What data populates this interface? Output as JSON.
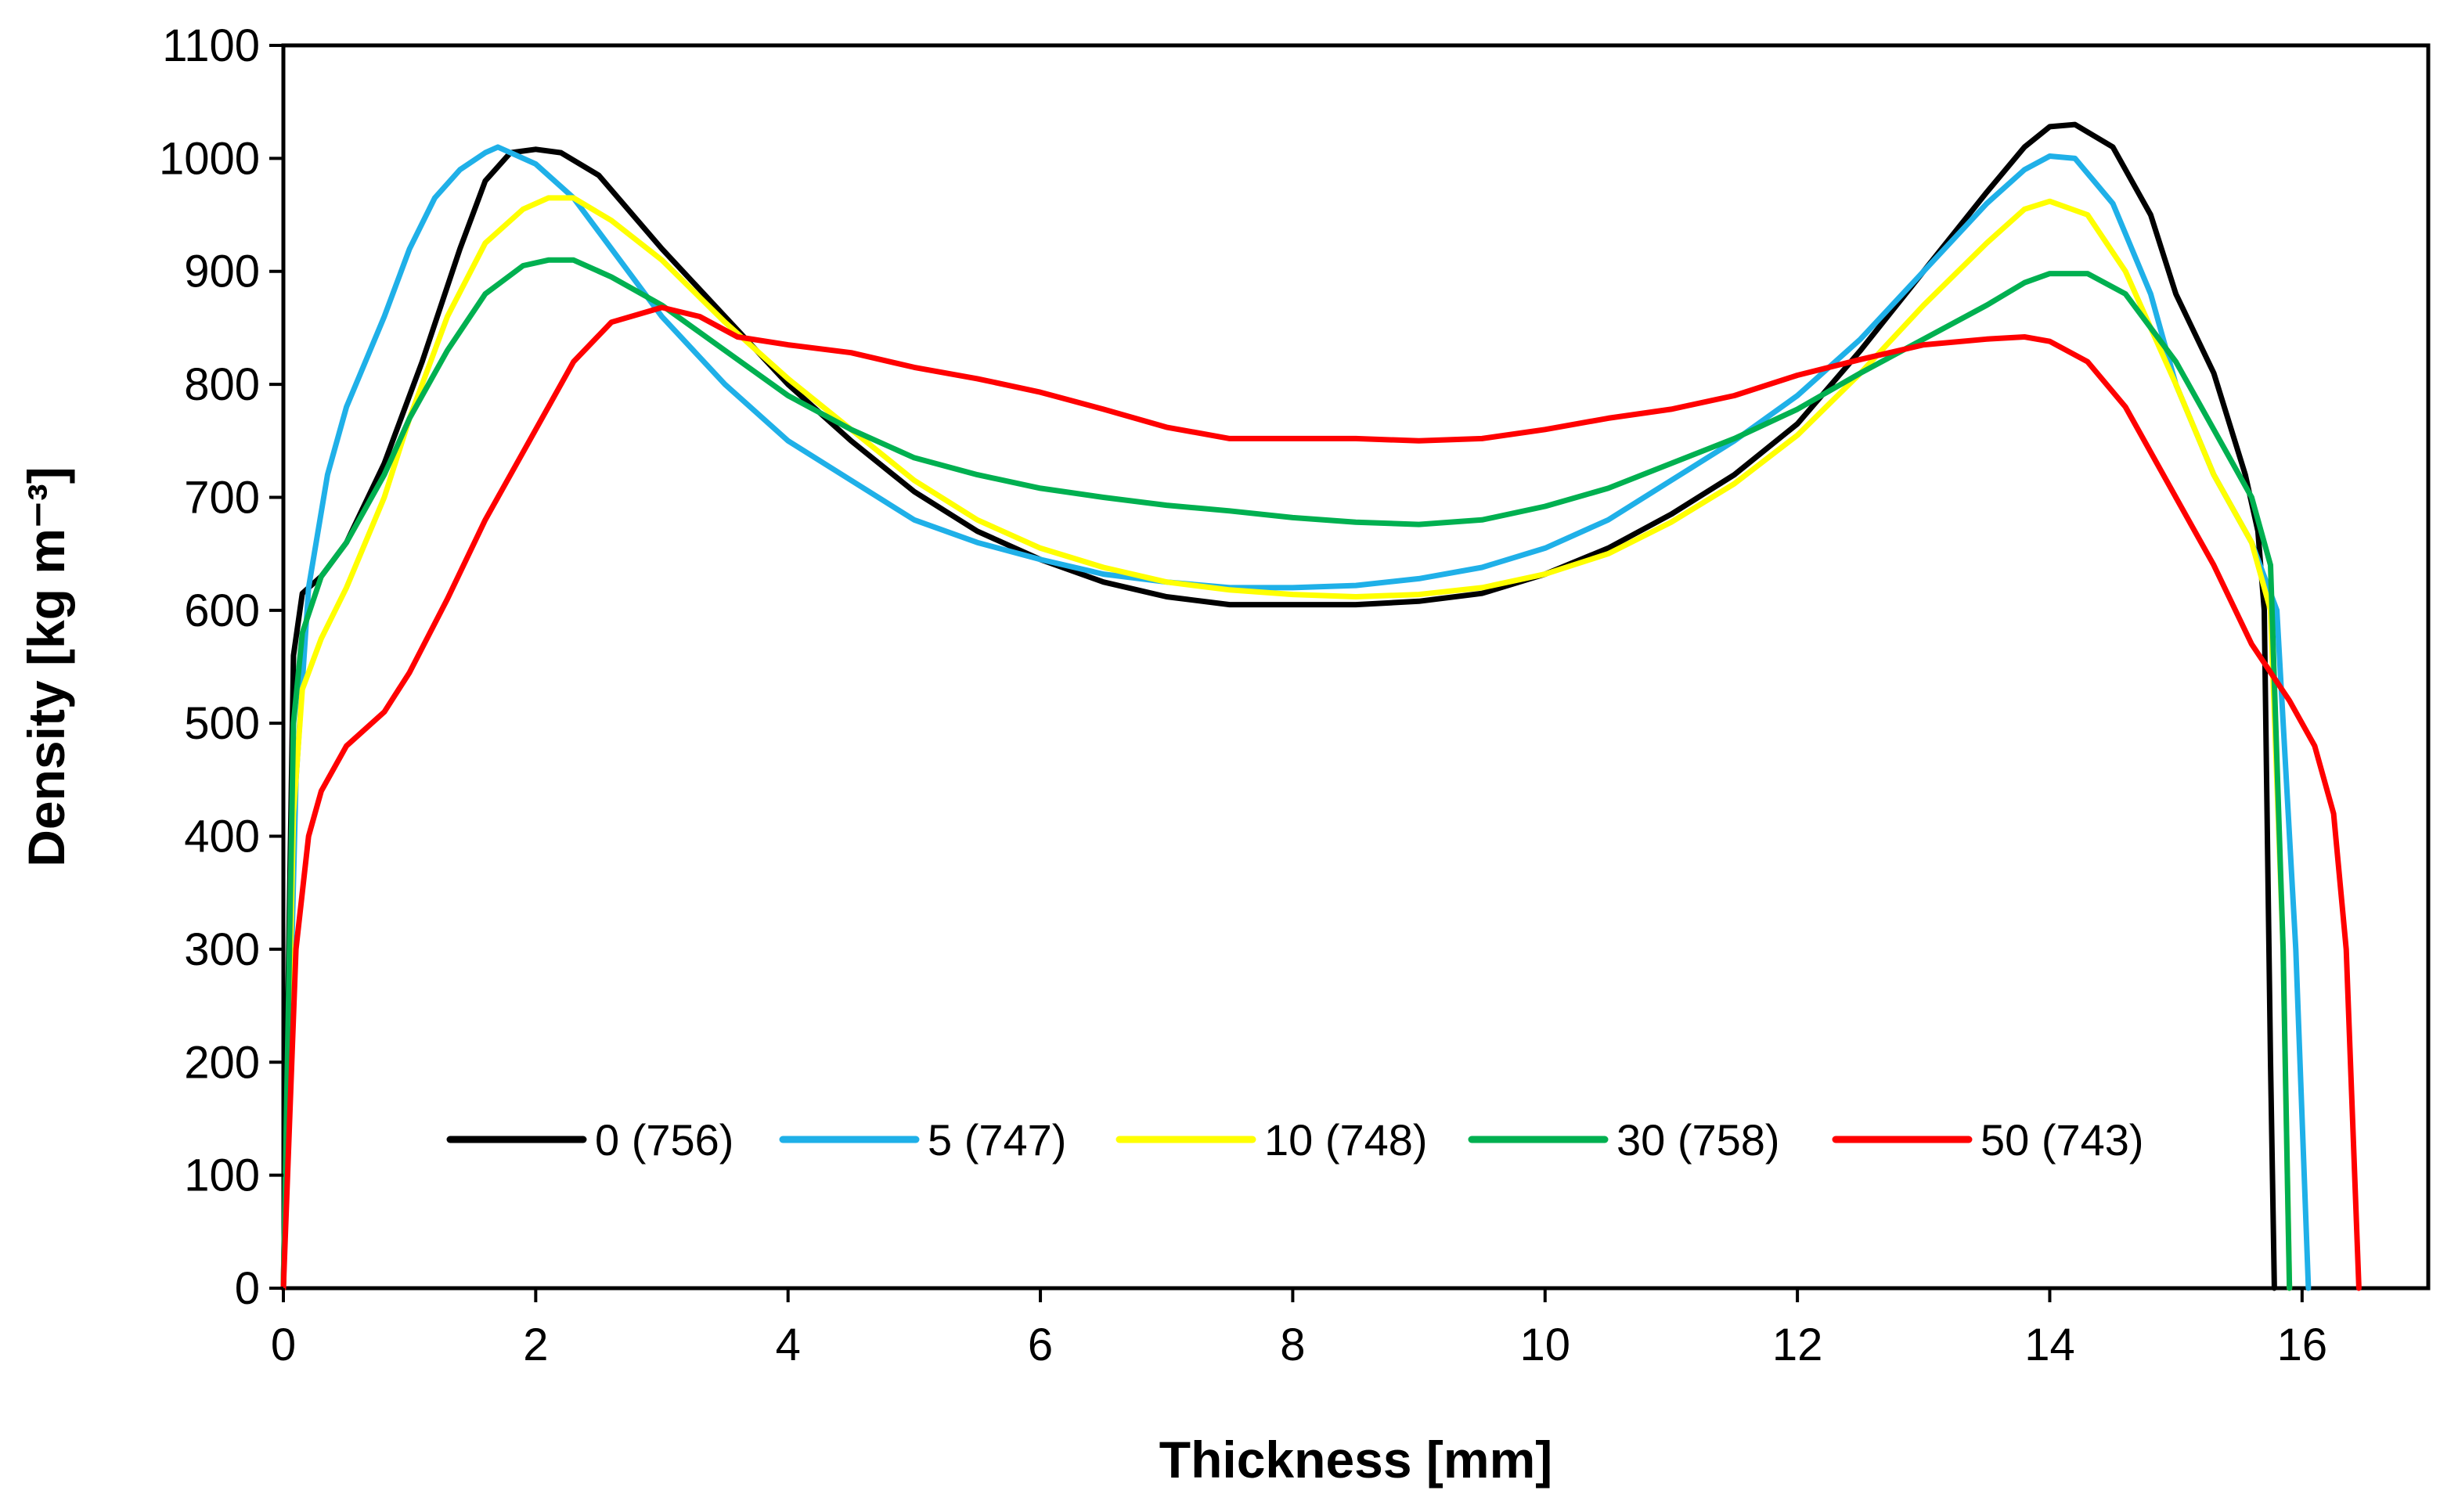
{
  "chart_data": {
    "type": "line",
    "title": "",
    "xlabel": "Thickness [mm]",
    "ylabel": "Density [kg m⁻³]",
    "xlim": [
      0,
      17
    ],
    "ylim": [
      0,
      1100
    ],
    "xticks": [
      0,
      2,
      4,
      6,
      8,
      10,
      12,
      14,
      16
    ],
    "yticks": [
      0,
      100,
      200,
      300,
      400,
      500,
      600,
      700,
      800,
      900,
      1000,
      1100
    ],
    "grid": false,
    "legend_position": "bottom-center",
    "series": [
      {
        "name": "0 (756)",
        "color": "#000000",
        "x": [
          0,
          0.08,
          0.15,
          0.3,
          0.5,
          0.8,
          1.1,
          1.4,
          1.6,
          1.8,
          2.0,
          2.2,
          2.5,
          3.0,
          3.5,
          4.0,
          4.5,
          5.0,
          5.5,
          6.0,
          6.5,
          7.0,
          7.5,
          8.0,
          8.5,
          9.0,
          9.5,
          10.0,
          10.5,
          11.0,
          11.5,
          12.0,
          12.5,
          13.0,
          13.5,
          13.8,
          14.0,
          14.2,
          14.5,
          14.8,
          15.0,
          15.3,
          15.55,
          15.65,
          15.7,
          15.75,
          15.78
        ],
        "y": [
          0,
          560,
          615,
          630,
          660,
          730,
          820,
          920,
          980,
          1005,
          1008,
          1005,
          985,
          920,
          860,
          800,
          750,
          705,
          670,
          645,
          625,
          612,
          605,
          605,
          605,
          608,
          615,
          632,
          655,
          685,
          720,
          765,
          830,
          900,
          970,
          1010,
          1028,
          1030,
          1010,
          950,
          880,
          810,
          720,
          670,
          600,
          200,
          0
        ]
      },
      {
        "name": "5 (747)",
        "color": "#1FB0E8",
        "x": [
          0,
          0.1,
          0.2,
          0.35,
          0.5,
          0.8,
          1.0,
          1.2,
          1.4,
          1.6,
          1.7,
          1.8,
          2.0,
          2.3,
          2.6,
          3.0,
          3.5,
          4.0,
          4.5,
          5.0,
          5.5,
          6.0,
          6.5,
          7.0,
          7.5,
          8.0,
          8.5,
          9.0,
          9.5,
          10.0,
          10.5,
          11.0,
          11.5,
          12.0,
          12.5,
          13.0,
          13.5,
          13.8,
          14.0,
          14.2,
          14.5,
          14.8,
          15.0,
          15.3,
          15.6,
          15.8,
          15.95,
          16.05
        ],
        "y": [
          0,
          450,
          620,
          720,
          780,
          860,
          920,
          965,
          990,
          1005,
          1010,
          1005,
          995,
          965,
          920,
          860,
          800,
          750,
          715,
          680,
          660,
          645,
          632,
          625,
          620,
          620,
          622,
          628,
          638,
          655,
          680,
          715,
          750,
          790,
          840,
          900,
          960,
          990,
          1002,
          1000,
          960,
          880,
          800,
          720,
          660,
          600,
          300,
          0
        ]
      },
      {
        "name": "10 (748)",
        "color": "#FFFF00",
        "x": [
          0,
          0.08,
          0.15,
          0.3,
          0.5,
          0.8,
          1.0,
          1.3,
          1.6,
          1.9,
          2.1,
          2.3,
          2.6,
          3.0,
          3.5,
          4.0,
          4.5,
          5.0,
          5.5,
          6.0,
          6.5,
          7.0,
          7.5,
          8.0,
          8.5,
          9.0,
          9.5,
          10.0,
          10.5,
          11.0,
          11.5,
          12.0,
          12.5,
          13.0,
          13.5,
          13.8,
          14.0,
          14.3,
          14.6,
          15.0,
          15.3,
          15.6,
          15.75,
          15.85,
          15.9
        ],
        "y": [
          0,
          420,
          530,
          575,
          620,
          700,
          770,
          860,
          925,
          955,
          965,
          965,
          945,
          910,
          855,
          805,
          760,
          715,
          680,
          655,
          638,
          625,
          618,
          614,
          612,
          614,
          620,
          632,
          650,
          678,
          712,
          755,
          810,
          870,
          925,
          955,
          962,
          950,
          900,
          800,
          720,
          660,
          600,
          300,
          0
        ]
      },
      {
        "name": "30 (758)",
        "color": "#00B050",
        "x": [
          0,
          0.08,
          0.15,
          0.3,
          0.5,
          0.8,
          1.0,
          1.3,
          1.6,
          1.9,
          2.1,
          2.3,
          2.6,
          3.0,
          3.5,
          4.0,
          4.5,
          5.0,
          5.5,
          6.0,
          6.5,
          7.0,
          7.5,
          8.0,
          8.5,
          9.0,
          9.5,
          10.0,
          10.5,
          11.0,
          11.5,
          12.0,
          12.5,
          13.0,
          13.5,
          13.8,
          14.0,
          14.3,
          14.6,
          15.0,
          15.3,
          15.6,
          15.75,
          15.85,
          15.9
        ],
        "y": [
          0,
          500,
          580,
          630,
          660,
          720,
          770,
          830,
          880,
          905,
          910,
          910,
          895,
          870,
          830,
          790,
          760,
          735,
          720,
          708,
          700,
          693,
          688,
          682,
          678,
          676,
          680,
          692,
          708,
          730,
          752,
          778,
          810,
          840,
          870,
          890,
          898,
          898,
          880,
          820,
          760,
          700,
          640,
          300,
          0
        ]
      },
      {
        "name": "50 (743)",
        "color": "#FF0000",
        "x": [
          0,
          0.1,
          0.2,
          0.3,
          0.5,
          0.8,
          1.0,
          1.3,
          1.6,
          2.0,
          2.3,
          2.6,
          3.0,
          3.3,
          3.6,
          4.0,
          4.5,
          5.0,
          5.5,
          6.0,
          6.5,
          7.0,
          7.5,
          8.0,
          8.5,
          9.0,
          9.5,
          10.0,
          10.5,
          11.0,
          11.5,
          12.0,
          12.5,
          13.0,
          13.5,
          13.8,
          14.0,
          14.3,
          14.6,
          15.0,
          15.3,
          15.6,
          15.9,
          16.1,
          16.25,
          16.35,
          16.4,
          16.45
        ],
        "y": [
          0,
          300,
          400,
          440,
          480,
          510,
          545,
          610,
          680,
          760,
          820,
          855,
          868,
          860,
          842,
          835,
          828,
          815,
          805,
          793,
          778,
          762,
          752,
          752,
          752,
          750,
          752,
          760,
          770,
          778,
          790,
          808,
          822,
          835,
          840,
          842,
          838,
          820,
          780,
          700,
          640,
          570,
          520,
          480,
          420,
          300,
          150,
          0
        ]
      }
    ]
  }
}
